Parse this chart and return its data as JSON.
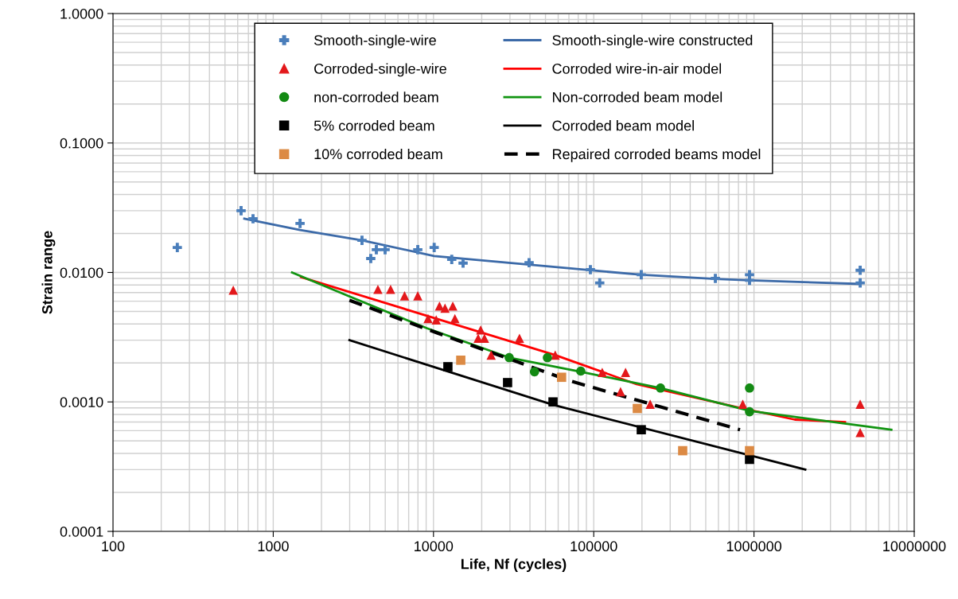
{
  "chart_data": {
    "type": "scatter",
    "xlabel": "Life, Nf (cycles)",
    "ylabel": "Strain range",
    "log": "xy",
    "grid": true,
    "legend": "top",
    "xlim": [
      100,
      10000000
    ],
    "xticks": [
      100,
      1000,
      10000,
      100000,
      1000000,
      10000000
    ],
    "ylim": [
      0.0001,
      1
    ],
    "yticks": [
      {
        "value": 0.0001,
        "label": "0.0001"
      },
      {
        "value": 0.001,
        "label": "0.0010"
      },
      {
        "value": 0.01,
        "label": "0.0100"
      },
      {
        "value": 0.1,
        "label": "0.1000"
      },
      {
        "value": 1,
        "label": "1.0000"
      }
    ],
    "series": [
      {
        "name": "Smooth-single-wire",
        "marker": "cross",
        "color": "#4a7ebb",
        "x": [
          252,
          630,
          748,
          1470,
          3580,
          4060,
          4400,
          4990,
          7980,
          10100,
          13000,
          15300,
          39500,
          95300,
          109000,
          198000,
          574000,
          938000,
          938000,
          4600000,
          4600000
        ],
        "values": [
          0.0156,
          0.03,
          0.026,
          0.0239,
          0.0177,
          0.0128,
          0.015,
          0.015,
          0.015,
          0.0156,
          0.0126,
          0.0118,
          0.0119,
          0.0105,
          0.0083,
          0.0096,
          0.009,
          0.0096,
          0.0087,
          0.0104,
          0.0083
        ]
      },
      {
        "name": "Corroded-single-wire",
        "marker": "triangle",
        "color": "#e3181b",
        "x": [
          563,
          4500,
          5400,
          6600,
          7980,
          10900,
          11800,
          13200,
          9250,
          10400,
          13600,
          19700,
          19000,
          20800,
          34400,
          22900,
          57500,
          113000,
          158000,
          147000,
          225000,
          851000,
          4600000,
          4600000
        ],
        "values": [
          0.0073,
          0.0074,
          0.0074,
          0.0066,
          0.0066,
          0.0055,
          0.0053,
          0.0055,
          0.0044,
          0.0043,
          0.0044,
          0.0036,
          0.0031,
          0.0031,
          0.0031,
          0.0023,
          0.0023,
          0.00169,
          0.00169,
          0.0012,
          0.00096,
          0.00096,
          0.00096,
          0.00058
        ]
      },
      {
        "name": "non-corroded beam",
        "marker": "circle",
        "color": "#138a13",
        "x": [
          29700,
          42700,
          51400,
          83000,
          261000,
          938000,
          938000
        ],
        "values": [
          0.0022,
          0.00171,
          0.0022,
          0.00173,
          0.00128,
          0.00128,
          0.00084
        ]
      },
      {
        "name": "5% corroded beam",
        "marker": "square",
        "color": "#000000",
        "x": [
          12300,
          29000,
          55700,
          198000,
          938000
        ],
        "values": [
          0.00187,
          0.00141,
          0.001,
          0.00061,
          0.00036
        ]
      },
      {
        "name": "10% corroded beam",
        "marker": "square",
        "color": "#dc8a44",
        "x": [
          14800,
          63000,
          187000,
          359000,
          938000
        ],
        "values": [
          0.0021,
          0.00155,
          0.00089,
          0.00042,
          0.00042
        ]
      },
      {
        "name": "Smooth-single-wire constructed",
        "type": "line",
        "line_style": "solid",
        "color": "#3c6aa8",
        "x": [
          660,
          1470,
          3580,
          10100,
          95300,
          198000,
          574000,
          938000,
          4600000
        ],
        "values": [
          0.026,
          0.0213,
          0.0177,
          0.0134,
          0.0104,
          0.0096,
          0.0089,
          0.0087,
          0.00815
        ]
      },
      {
        "name": "Corroded wire-in-air model",
        "type": "line",
        "line_style": "solid",
        "color": "#ff0000",
        "x": [
          1490,
          57500,
          185000,
          851000,
          1800000,
          3700000
        ],
        "values": [
          0.0092,
          0.0023,
          0.00137,
          0.00089,
          0.00073,
          0.0007
        ]
      },
      {
        "name": "Non-corroded beam model",
        "type": "line",
        "line_style": "solid",
        "color": "#119411",
        "x": [
          1310,
          3020,
          9140,
          29700,
          83000,
          261000,
          949000,
          7200000
        ],
        "values": [
          0.01,
          0.0065,
          0.0037,
          0.0022,
          0.00171,
          0.00128,
          0.00085,
          0.00061
        ]
      },
      {
        "name": "Corroded beam model",
        "type": "line",
        "line_style": "solid",
        "color": "#000000",
        "x": [
          2990,
          55700,
          2090000
        ],
        "values": [
          0.003,
          0.00095,
          0.0003
        ]
      },
      {
        "name": "Repaired corroded beams model",
        "type": "line",
        "line_style": "dashed",
        "color": "#000000",
        "x": [
          2990,
          10600,
          71600,
          818000
        ],
        "values": [
          0.0061,
          0.0034,
          0.00145,
          0.00061
        ]
      }
    ]
  }
}
